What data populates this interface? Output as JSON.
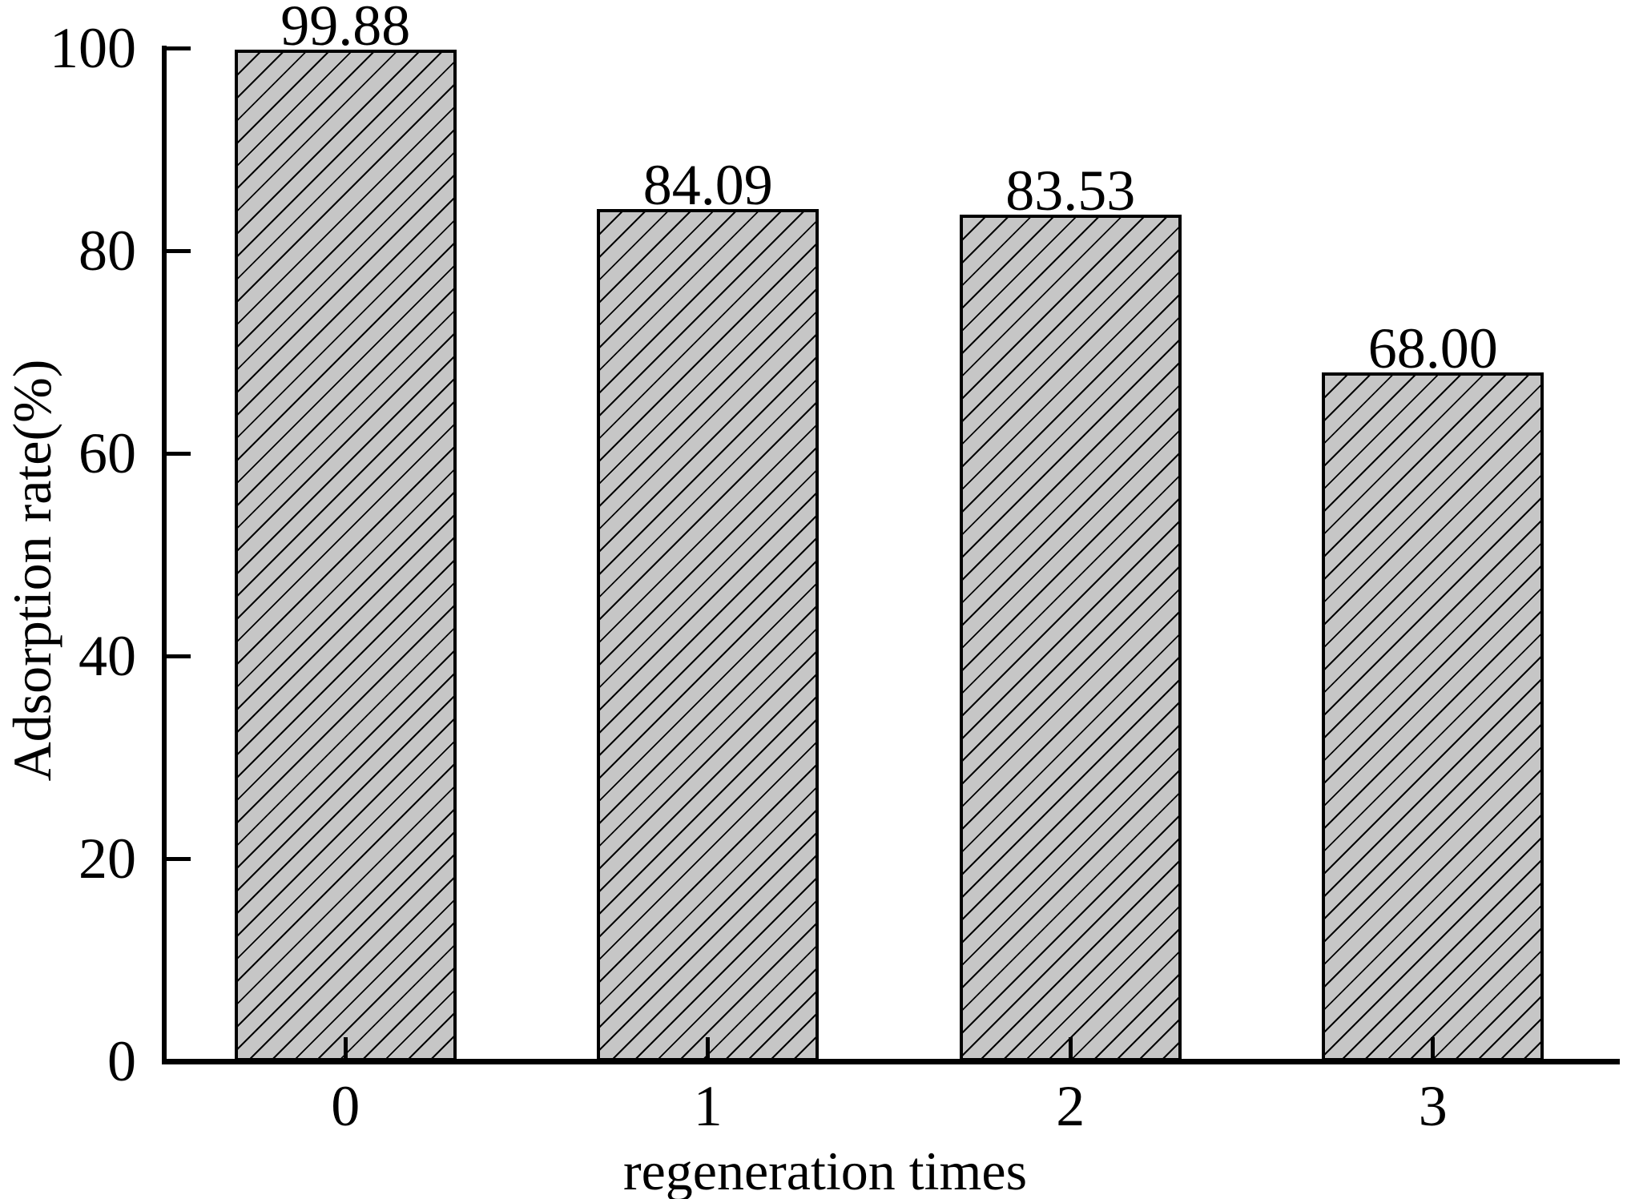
{
  "figure": {
    "background_color": "#ffffff",
    "text_color": "#000000"
  },
  "chart_data": {
    "type": "bar",
    "title": "",
    "xlabel": "regeneration times",
    "ylabel": "Adsorption rate(%)",
    "categories": [
      "0",
      "1",
      "2",
      "3"
    ],
    "values": [
      99.88,
      84.09,
      83.53,
      68.0
    ],
    "value_labels": [
      "99.88",
      "84.09",
      "83.53",
      "68.00"
    ],
    "ylim": [
      0,
      100
    ],
    "yticks": [
      0,
      20,
      40,
      60,
      80,
      100
    ],
    "grid": false,
    "legend": null,
    "bar_fill_color": "#c6c6c6",
    "bar_edge_color": "#000000",
    "hatch_pattern": "/",
    "tick_direction": "in"
  }
}
